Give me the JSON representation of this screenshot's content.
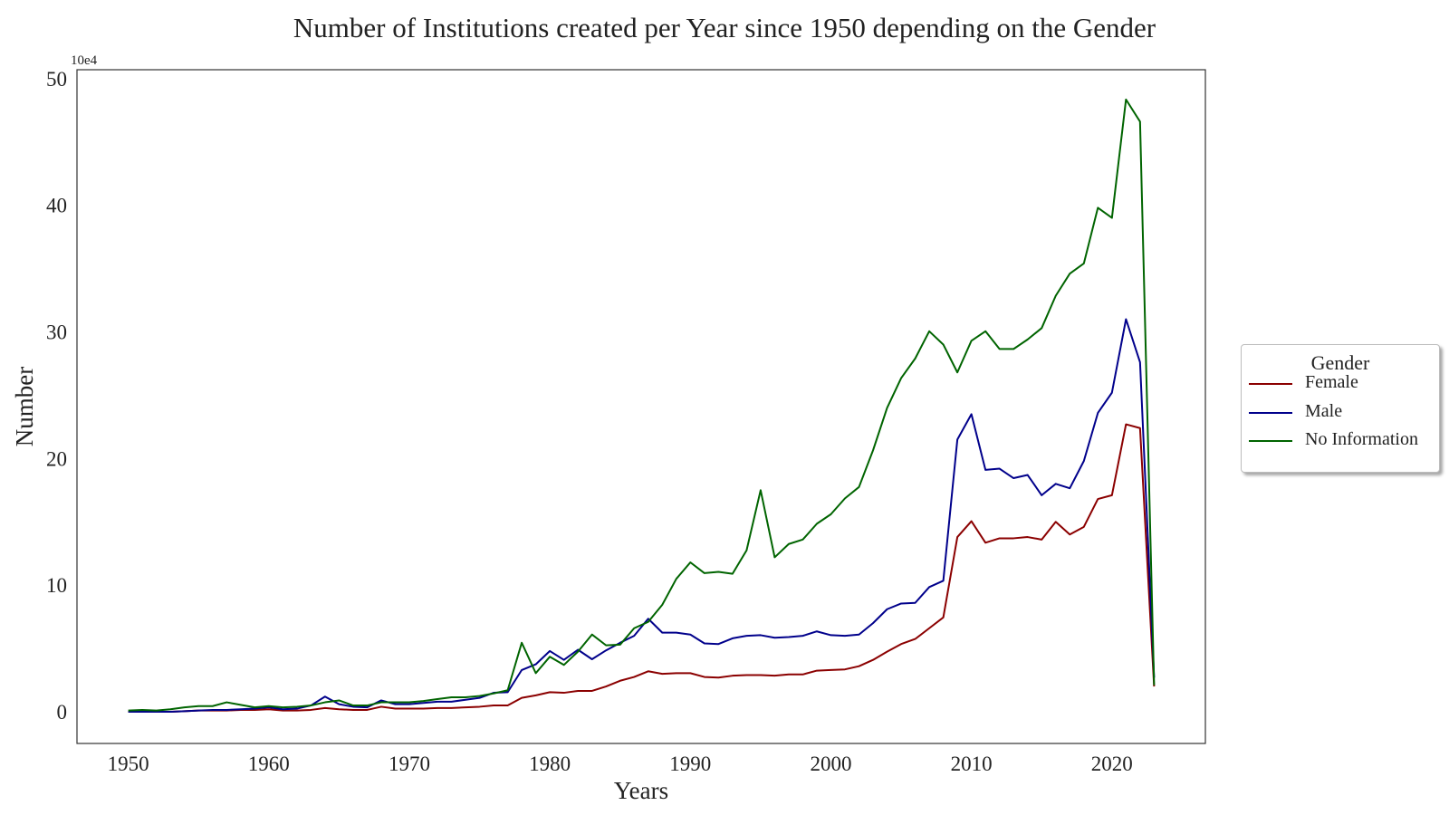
{
  "chart_data": {
    "type": "line",
    "title": "Number of Institutions created per Year since 1950 depending on the Gender",
    "xlabel": "Years",
    "ylabel": "Number",
    "y_multiplier_label": "10e4",
    "xlim": [
      1946.35,
      2026.65
    ],
    "ylim": [
      -2.5,
      50.7
    ],
    "x_ticks": [
      1950,
      1960,
      1970,
      1980,
      1990,
      2000,
      2010,
      2020
    ],
    "y_ticks": [
      0,
      10,
      20,
      30,
      40,
      50
    ],
    "grid": false,
    "legend": {
      "title": "Gender",
      "placement": "right-outside"
    },
    "x": [
      1950,
      1951,
      1952,
      1953,
      1954,
      1955,
      1956,
      1957,
      1958,
      1959,
      1960,
      1961,
      1962,
      1963,
      1964,
      1965,
      1966,
      1967,
      1968,
      1969,
      1970,
      1971,
      1972,
      1973,
      1974,
      1975,
      1976,
      1977,
      1978,
      1979,
      1980,
      1981,
      1982,
      1983,
      1984,
      1985,
      1986,
      1987,
      1988,
      1989,
      1990,
      1991,
      1992,
      1993,
      1994,
      1995,
      1996,
      1997,
      1998,
      1999,
      2000,
      2001,
      2002,
      2003,
      2004,
      2005,
      2006,
      2007,
      2008,
      2009,
      2010,
      2011,
      2012,
      2013,
      2014,
      2015,
      2016,
      2017,
      2018,
      2019,
      2020,
      2021,
      2022,
      2023
    ],
    "series": [
      {
        "name": "Female",
        "color": "#8b0000",
        "values": [
          0,
          0,
          0,
          0,
          0.05,
          0.1,
          0.1,
          0.1,
          0.15,
          0.15,
          0.2,
          0.1,
          0.1,
          0.15,
          0.3,
          0.2,
          0.15,
          0.15,
          0.4,
          0.25,
          0.25,
          0.25,
          0.3,
          0.3,
          0.35,
          0.4,
          0.5,
          0.5,
          1.1,
          1.3,
          1.55,
          1.5,
          1.65,
          1.65,
          2.0,
          2.45,
          2.75,
          3.2,
          3.0,
          3.05,
          3.05,
          2.75,
          2.7,
          2.85,
          2.9,
          2.9,
          2.85,
          2.95,
          2.95,
          3.25,
          3.3,
          3.35,
          3.6,
          4.1,
          4.75,
          5.35,
          5.75,
          6.6,
          7.45,
          13.8,
          15.05,
          13.35,
          13.7,
          13.7,
          13.8,
          13.6,
          15.0,
          14.0,
          14.6,
          16.8,
          17.1,
          22.7,
          22.4,
          2.0
        ]
      },
      {
        "name": "Male",
        "color": "#00008b",
        "values": [
          0,
          0,
          0,
          0,
          0.05,
          0.1,
          0.15,
          0.15,
          0.2,
          0.25,
          0.35,
          0.2,
          0.25,
          0.5,
          1.2,
          0.6,
          0.4,
          0.35,
          0.9,
          0.6,
          0.6,
          0.7,
          0.8,
          0.8,
          0.95,
          1.1,
          1.5,
          1.55,
          3.3,
          3.75,
          4.8,
          4.1,
          4.9,
          4.15,
          4.85,
          5.45,
          6.0,
          7.35,
          6.25,
          6.25,
          6.1,
          5.4,
          5.35,
          5.8,
          6.0,
          6.05,
          5.85,
          5.9,
          6.0,
          6.35,
          6.05,
          6.0,
          6.1,
          7.0,
          8.1,
          8.55,
          8.6,
          9.85,
          10.35,
          21.5,
          23.5,
          19.1,
          19.2,
          18.45,
          18.7,
          17.1,
          18.0,
          17.65,
          19.8,
          23.6,
          25.2,
          31.0,
          27.6,
          2.7
        ]
      },
      {
        "name": "No Information",
        "color": "#006400",
        "values": [
          0.1,
          0.15,
          0.1,
          0.2,
          0.35,
          0.45,
          0.45,
          0.75,
          0.55,
          0.35,
          0.45,
          0.35,
          0.4,
          0.5,
          0.75,
          0.9,
          0.5,
          0.5,
          0.75,
          0.75,
          0.75,
          0.85,
          1.0,
          1.15,
          1.15,
          1.25,
          1.45,
          1.7,
          5.45,
          3.05,
          4.35,
          3.7,
          4.75,
          6.1,
          5.25,
          5.3,
          6.6,
          7.1,
          8.45,
          10.5,
          11.8,
          10.95,
          11.05,
          10.9,
          12.75,
          17.5,
          12.2,
          13.25,
          13.6,
          14.85,
          15.6,
          16.85,
          17.75,
          20.65,
          24.0,
          26.35,
          27.9,
          30.05,
          29.0,
          26.8,
          29.3,
          30.05,
          28.65,
          28.65,
          29.4,
          30.3,
          32.85,
          34.6,
          35.4,
          39.8,
          39.0,
          48.35,
          46.6,
          2.1
        ]
      }
    ]
  }
}
